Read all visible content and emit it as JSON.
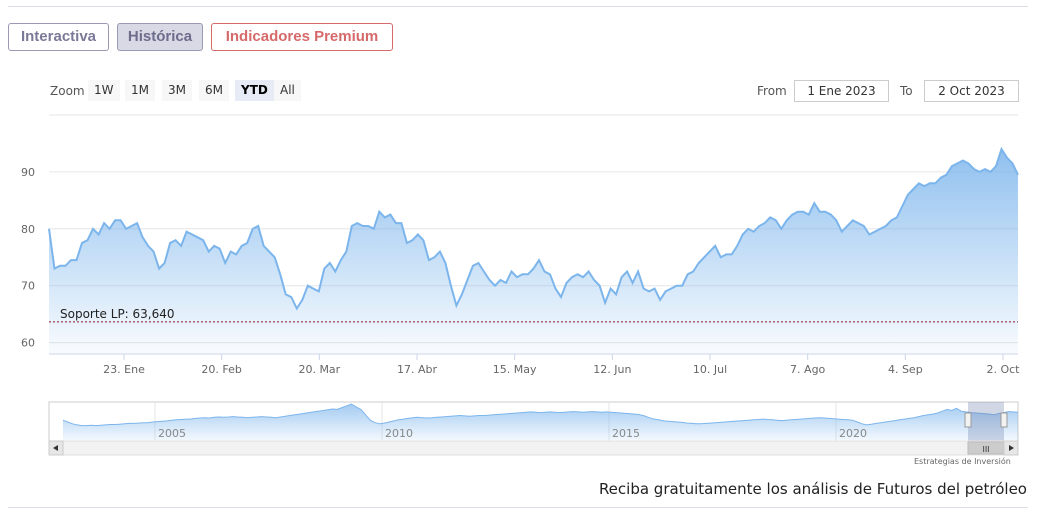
{
  "tabs": [
    {
      "label": "Interactiva",
      "color": "#7a7a98",
      "bg": "#ffffff",
      "border": "#9a9ab5"
    },
    {
      "label": "Histórica",
      "color": "#6c6c8c",
      "bg": "#d9d9e6",
      "border": "#9a9ab5"
    },
    {
      "label": "Indicadores Premium",
      "color": "#d66a6a",
      "bg": "#ffffff",
      "border": "#d66a6a"
    }
  ],
  "zoom": {
    "label": "Zoom",
    "buttons": [
      "1W",
      "1M",
      "3M",
      "6M",
      "YTD",
      "All"
    ],
    "active": "YTD"
  },
  "range": {
    "from_label": "From",
    "from_value": "1 Ene 2023",
    "to_label": "To",
    "to_value": "2 Oct 2023"
  },
  "chart_data": {
    "type": "area",
    "y_ticks": [
      "90",
      "80",
      "70",
      "60"
    ],
    "x_ticks": [
      "23. Ene",
      "20. Feb",
      "20. Mar",
      "17. Abr",
      "15. May",
      "12. Jun",
      "10. Jul",
      "7. Ago",
      "4. Sep",
      "2. Oct"
    ],
    "ylim": [
      58,
      100
    ],
    "grid": true,
    "line_color": "#7cb5ec",
    "series": [
      {
        "values": [
          80,
          73,
          73.5,
          73.5,
          74.5,
          74.5,
          77.5,
          78,
          80,
          79,
          81,
          80,
          81.5,
          81.5,
          80,
          80.5,
          81,
          78.5,
          77,
          76,
          73,
          74,
          77.5,
          78,
          77,
          79.5,
          79,
          78.5,
          78,
          76,
          77,
          76.5,
          74,
          76,
          75.5,
          77,
          77.5,
          80,
          80.5,
          77,
          76,
          75,
          72,
          68.5,
          68,
          66,
          67.5,
          70,
          69.5,
          69,
          73,
          74,
          72.5,
          74.5,
          76,
          80.5,
          81,
          80.5,
          80.5,
          80,
          83,
          82,
          82.5,
          81,
          81,
          77.5,
          78,
          79,
          78,
          74.5,
          75,
          76,
          74,
          70,
          66.5,
          68.5,
          71,
          73.5,
          74,
          72.5,
          71,
          70,
          71,
          70.5,
          72.5,
          71.5,
          72,
          72,
          73,
          74.5,
          72.5,
          72,
          69.5,
          68,
          70.5,
          71.5,
          72,
          71.5,
          72.5,
          71,
          70,
          67,
          69.5,
          68.5,
          71.5,
          72.5,
          70.5,
          72.5,
          69.5,
          69,
          69.5,
          67.5,
          69,
          69.5,
          70,
          70,
          72,
          72.5,
          74,
          75,
          76,
          77,
          75,
          75.5,
          75.5,
          77,
          79,
          80,
          79.5,
          80.5,
          81,
          82,
          81.5,
          80,
          81.5,
          82.5,
          83,
          83,
          82.5,
          84.5,
          83,
          83,
          82.5,
          81.5,
          79.5,
          80.5,
          81.5,
          81,
          80.5,
          79,
          79.5,
          80,
          80.5,
          81.5,
          82,
          84,
          86,
          87,
          88,
          87.5,
          88,
          88,
          89,
          89.5,
          91,
          91.5,
          92,
          91.5,
          90.5,
          90,
          90.5,
          90,
          91,
          94,
          92.5,
          91.5,
          89.5
        ]
      }
    ],
    "support": {
      "label": "Soporte LP: 63,640",
      "value": 63.64,
      "color": "#8b1a1a"
    },
    "navigator": {
      "year_labels": [
        "2005",
        "2010",
        "2015",
        "2020"
      ],
      "values": [
        55,
        50,
        45,
        42,
        40,
        40,
        41,
        40,
        41,
        42,
        43,
        43,
        44,
        45,
        46,
        46,
        47,
        48,
        48,
        50,
        51,
        52,
        53,
        55,
        56,
        57,
        58,
        58,
        60,
        61,
        62,
        61,
        63,
        64,
        63,
        64,
        65,
        64,
        63,
        62,
        63,
        64,
        65,
        64,
        63,
        62,
        64,
        66,
        68,
        70,
        72,
        74,
        76,
        78,
        80,
        82,
        84,
        86,
        85,
        90,
        95,
        100,
        92,
        85,
        70,
        55,
        48,
        45,
        47,
        50,
        53,
        56,
        58,
        60,
        62,
        63,
        62,
        61,
        62,
        63,
        64,
        65,
        66,
        67,
        68,
        67,
        66,
        67,
        68,
        68,
        69,
        70,
        71,
        72,
        73,
        74,
        75,
        76,
        77,
        78,
        77,
        76,
        77,
        78,
        77,
        76,
        77,
        78,
        79,
        78,
        77,
        78,
        79,
        78,
        77,
        78,
        77,
        76,
        75,
        74,
        73,
        72,
        70,
        67,
        62,
        58,
        56,
        53,
        52,
        51,
        50,
        49,
        47,
        46,
        45,
        45,
        46,
        47,
        48,
        49,
        50,
        51,
        52,
        53,
        54,
        55,
        56,
        57,
        58,
        57,
        56,
        55,
        54,
        55,
        56,
        57,
        58,
        59,
        60,
        61,
        62,
        61,
        60,
        59,
        58,
        57,
        56,
        55,
        50,
        45,
        42,
        44,
        46,
        48,
        50,
        52,
        54,
        56,
        58,
        60,
        62,
        65,
        68,
        70,
        72,
        75,
        80,
        85,
        82,
        88,
        80,
        78,
        76,
        75,
        74,
        73,
        72,
        70,
        74,
        76,
        79,
        78,
        77
      ]
    }
  },
  "navigator_scroll_label": "III",
  "credits": "Estrategias de Inversión",
  "cta": "Reciba gratuitamente los análisis de Futuros del petróleo"
}
